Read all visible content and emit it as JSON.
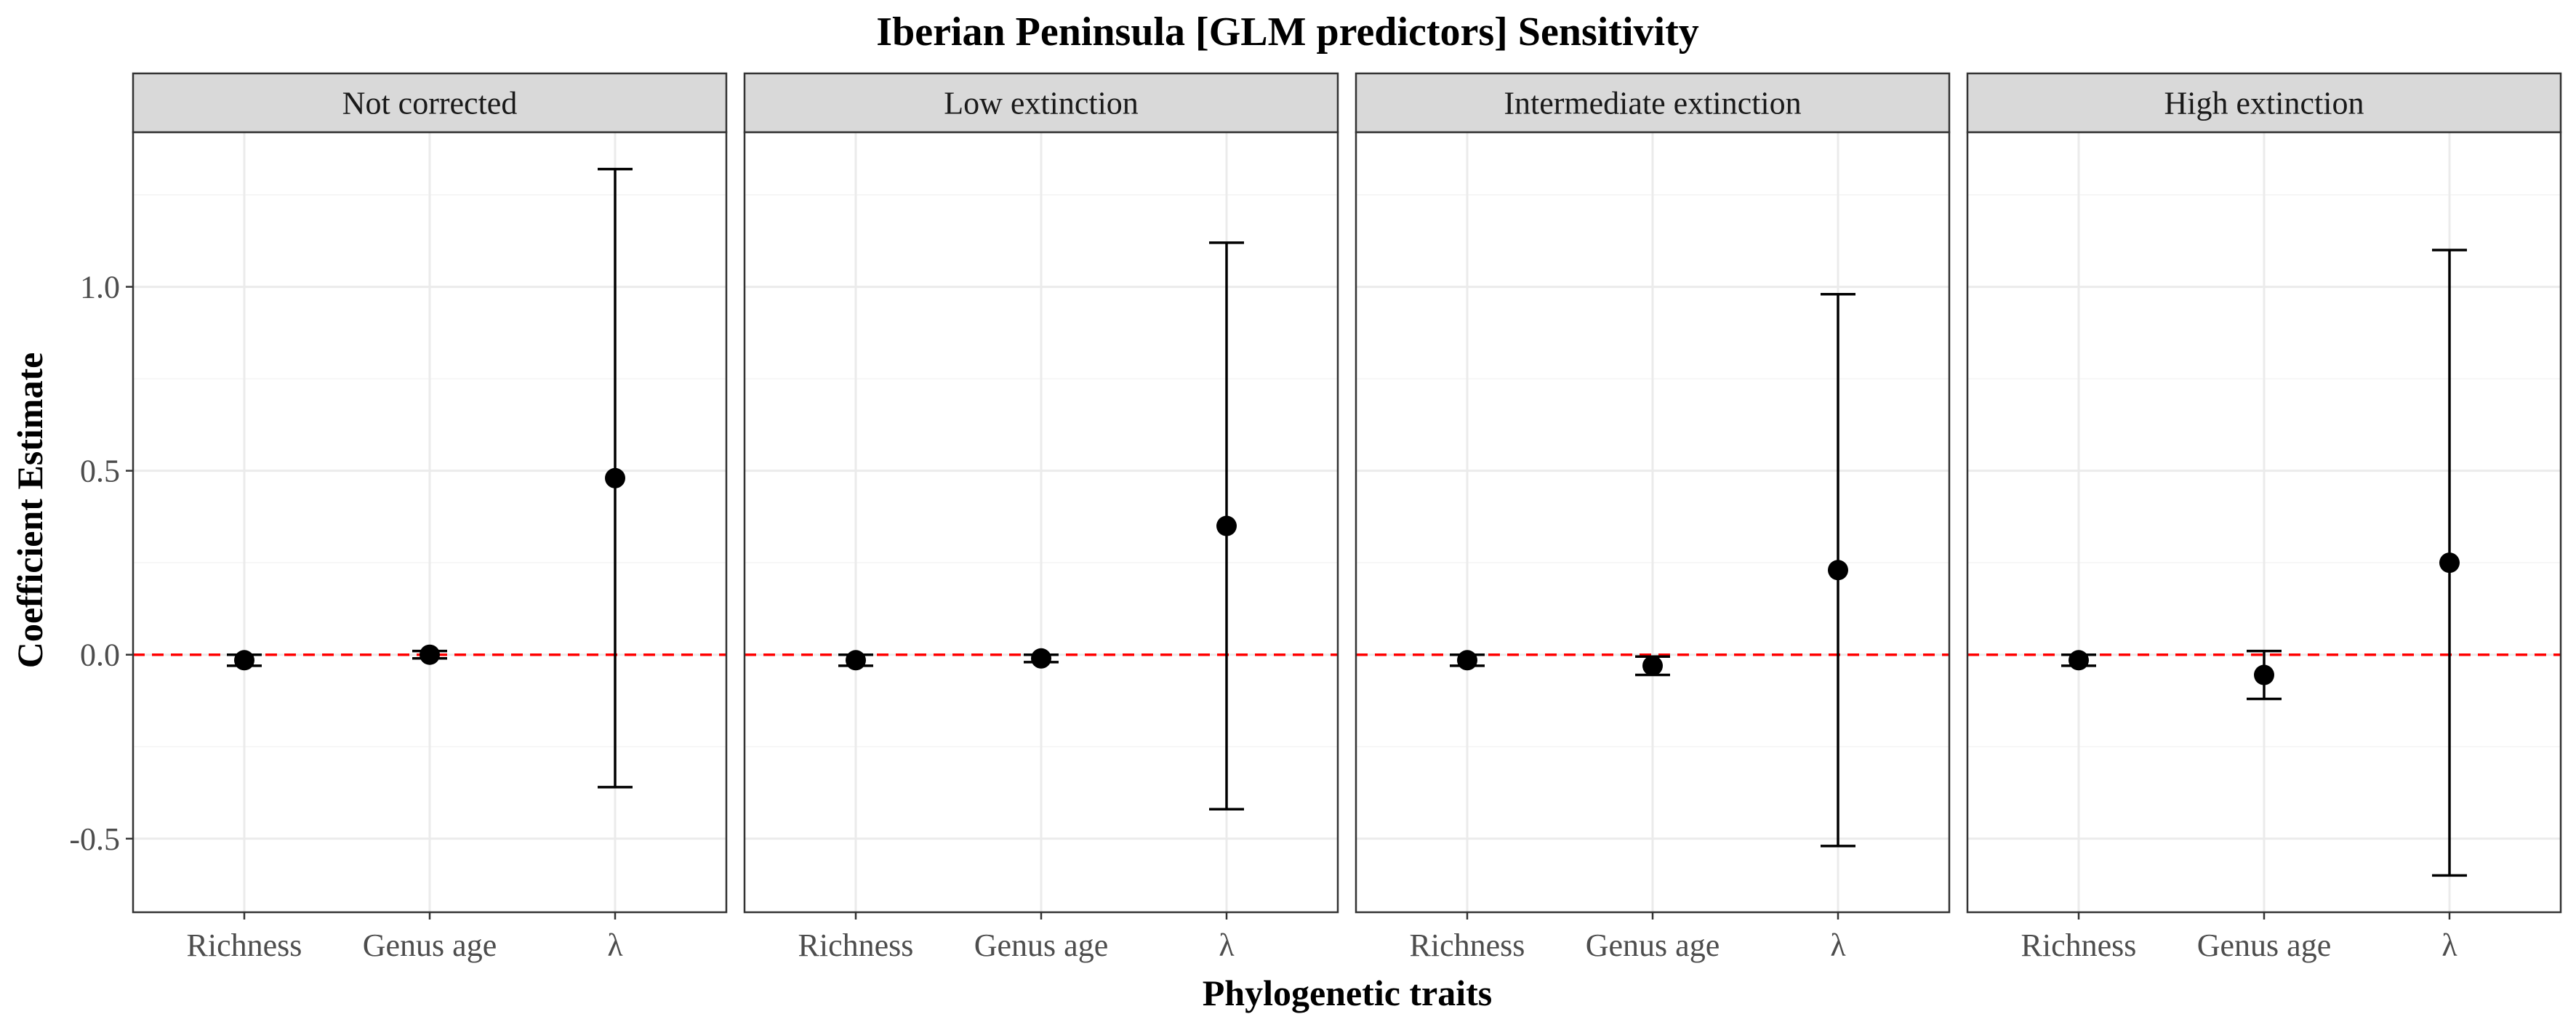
{
  "title": "Iberian Peninsula [GLM predictors] Sensitivity",
  "chart_data": {
    "type": "scatter",
    "subtype": "point-range / error bars, faceted",
    "title": "Iberian Peninsula [GLM predictors] Sensitivity",
    "xlabel": "Phylogenetic traits",
    "ylabel": "Coefficient Estimate",
    "categories": [
      "Richness",
      "Genus age",
      "λ"
    ],
    "ylim": [
      -0.7,
      1.42
    ],
    "y_ticks": [
      -0.5,
      0.0,
      0.5,
      1.0
    ],
    "y_tick_labels": [
      "-0.5",
      "0.0",
      "0.5",
      "1.0"
    ],
    "grid": true,
    "reference_line": {
      "y": 0.0,
      "color": "#ff0000",
      "style": "dashed"
    },
    "colors": {
      "points": "#000000",
      "reference_line": "#ff0000",
      "strip": "#d9d9d9"
    },
    "facets": [
      {
        "label": "Not corrected",
        "points": [
          {
            "category": "Richness",
            "estimate": -0.015,
            "lower": -0.03,
            "upper": 0.0
          },
          {
            "category": "Genus age",
            "estimate": 0.0,
            "lower": -0.01,
            "upper": 0.01
          },
          {
            "category": "λ",
            "estimate": 0.48,
            "lower": -0.36,
            "upper": 1.32
          }
        ]
      },
      {
        "label": "Low extinction",
        "points": [
          {
            "category": "Richness",
            "estimate": -0.015,
            "lower": -0.03,
            "upper": 0.0
          },
          {
            "category": "Genus age",
            "estimate": -0.01,
            "lower": -0.02,
            "upper": 0.0
          },
          {
            "category": "λ",
            "estimate": 0.35,
            "lower": -0.42,
            "upper": 1.12
          }
        ]
      },
      {
        "label": "Intermediate extinction",
        "points": [
          {
            "category": "Richness",
            "estimate": -0.015,
            "lower": -0.03,
            "upper": 0.0
          },
          {
            "category": "Genus age",
            "estimate": -0.03,
            "lower": -0.055,
            "upper": -0.005
          },
          {
            "category": "λ",
            "estimate": 0.23,
            "lower": -0.52,
            "upper": 0.98
          }
        ]
      },
      {
        "label": "High extinction",
        "points": [
          {
            "category": "Richness",
            "estimate": -0.015,
            "lower": -0.03,
            "upper": 0.0
          },
          {
            "category": "Genus age",
            "estimate": -0.055,
            "lower": -0.12,
            "upper": 0.01
          },
          {
            "category": "λ",
            "estimate": 0.25,
            "lower": -0.6,
            "upper": 1.1
          }
        ]
      }
    ]
  }
}
